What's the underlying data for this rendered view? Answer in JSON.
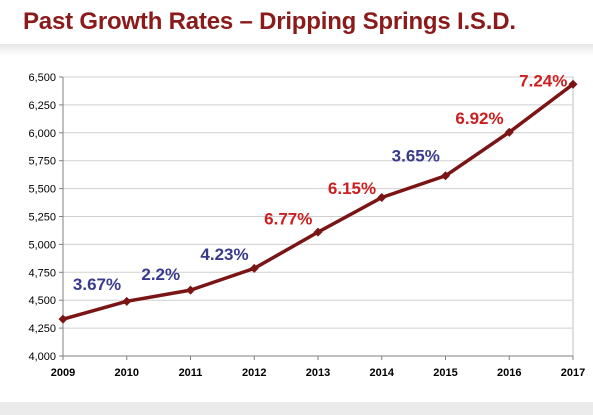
{
  "slide": {
    "title": "Past Growth Rates – Dripping Springs I.S.D."
  },
  "chart_data": {
    "type": "line",
    "title": "",
    "xlabel": "",
    "ylabel": "",
    "categories": [
      "2009",
      "2010",
      "2011",
      "2012",
      "2013",
      "2014",
      "2015",
      "2016",
      "2017"
    ],
    "series": [
      {
        "values": [
          4330,
          4490,
          4590,
          4785,
          5110,
          5420,
          5615,
          6005,
          6435
        ],
        "color": "#7b1414"
      }
    ],
    "ylim": [
      4000,
      6500
    ],
    "yticks": [
      4000,
      4250,
      4500,
      4750,
      5000,
      5250,
      5500,
      5750,
      6000,
      6250,
      6500
    ],
    "ytick_labels": [
      "4,000",
      "4,250",
      "4,500",
      "4,750",
      "5,000",
      "5,250",
      "5,500",
      "5,750",
      "6,000",
      "6,250",
      "6,500"
    ],
    "grid": true,
    "annotations": [
      {
        "text": "3.67%",
        "x": "2009",
        "y": 4590,
        "color": "#3a3a8c"
      },
      {
        "text": "2.2%",
        "x": "2010",
        "y": 4680,
        "color": "#3a3a8c"
      },
      {
        "text": "4.23%",
        "x": "2011",
        "y": 4860,
        "color": "#3a3a8c"
      },
      {
        "text": "6.77%",
        "x": "2012",
        "y": 5180,
        "color": "#cc2020"
      },
      {
        "text": "6.15%",
        "x": "2013",
        "y": 5450,
        "color": "#cc2020"
      },
      {
        "text": "3.65%",
        "x": "2014",
        "y": 5745,
        "color": "#3a3a8c"
      },
      {
        "text": "6.92%",
        "x": "2015",
        "y": 6080,
        "color": "#cc2020"
      },
      {
        "text": "7.24%",
        "x": "2016",
        "y": 6415,
        "color": "#cc2020"
      }
    ]
  }
}
